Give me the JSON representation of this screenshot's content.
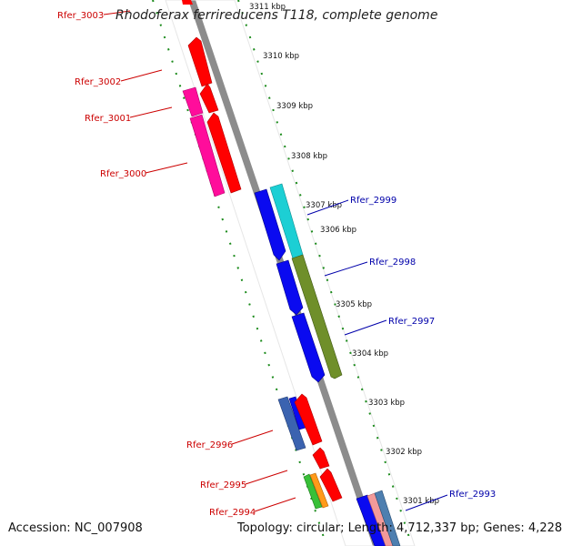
{
  "title": "Rhodoferax ferrireducens T118, complete genome",
  "footer": {
    "accession_label": "Accession:",
    "accession": "NC_007908",
    "topology_label": "Topology:",
    "topology": "circular",
    "length_label": "Length:",
    "length": "4,712,337 bp",
    "genes_label": "Genes:",
    "genes": "4,228"
  },
  "colors": {
    "backbone": "#8c8c8c",
    "scale_dots": "#1a8a1a",
    "reverse_label": "#cc0000",
    "forward_label": "#0000aa"
  },
  "scale": {
    "unit": "kbp",
    "ticks": [
      "3311 kbp",
      "3310 kbp",
      "3309 kbp",
      "3308 kbp",
      "3307 kbp",
      "3306 kbp",
      "3305 kbp",
      "3304 kbp",
      "3303 kbp",
      "3302 kbp",
      "3301 kbp"
    ]
  },
  "genes": [
    {
      "name": "Rfer_3003",
      "strand": "reverse",
      "label_visible": true
    },
    {
      "name": "Rfer_3002",
      "strand": "reverse",
      "label_visible": true
    },
    {
      "name": "Rfer_3001",
      "strand": "reverse",
      "label_visible": true
    },
    {
      "name": "Rfer_3000",
      "strand": "reverse",
      "label_visible": true
    },
    {
      "name": "Rfer_2999",
      "strand": "forward",
      "label_visible": true
    },
    {
      "name": "Rfer_2998",
      "strand": "forward",
      "label_visible": true
    },
    {
      "name": "Rfer_2997",
      "strand": "forward",
      "label_visible": true
    },
    {
      "name": "Rfer_2996",
      "strand": "reverse",
      "label_visible": true
    },
    {
      "name": "Rfer_2995",
      "strand": "reverse",
      "label_visible": true
    },
    {
      "name": "Rfer_2994",
      "strand": "reverse",
      "label_visible": true
    },
    {
      "name": "Rfer_2993",
      "strand": "forward",
      "label_visible": true
    }
  ]
}
